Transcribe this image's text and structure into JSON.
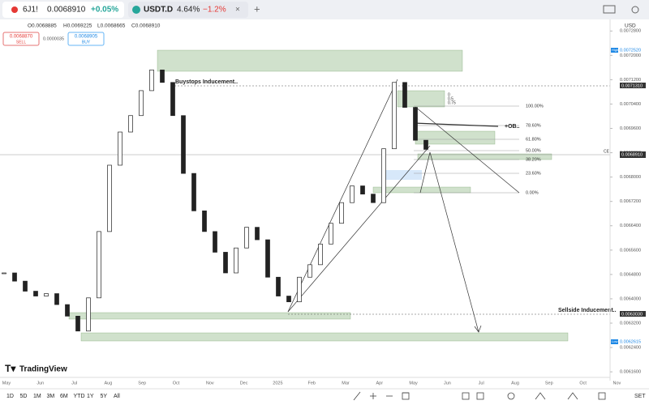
{
  "tabs": [
    {
      "symbol": "6J1!",
      "price": "0.0068910",
      "change": "+0.05%"
    },
    {
      "symbol": "USDT.D",
      "price": "4.64%",
      "change": "−1.2%"
    }
  ],
  "ohlc": {
    "open": "O0.0068885",
    "high": "H0.0069225",
    "low": "L0.0068665",
    "close": "C0.0068910"
  },
  "trade": {
    "sell_price": "0.0068870",
    "sell": "SELL",
    "spread": "0.0000035",
    "buy_price": "0.0068905",
    "buy": "BUY"
  },
  "currency": "USD",
  "chart_data": {
    "type": "candlestick",
    "values": [
      0.006485,
      0.006458,
      0.006425,
      0.006409,
      0.006417,
      0.006381,
      0.006343,
      0.006294,
      0.006403,
      0.006621,
      0.006839,
      0.006948,
      0.007002,
      0.007084,
      0.007152,
      0.007111,
      0.007002,
      0.006812,
      0.006689,
      0.006621,
      0.006553,
      0.006485,
      0.006567,
      0.006635,
      0.006594,
      0.006471,
      0.006409,
      0.00639,
      0.006471,
      0.006512,
      0.00658,
      0.006648,
      0.006716,
      0.006771,
      0.006744,
      0.006716,
      0.006893,
      0.007111,
      0.007029,
      0.006921,
      0.006891
    ],
    "ylim": [
      0.006131,
      0.007318
    ],
    "yticks": [
      {
        "value": 0.00728,
        "label": "0.0072800"
      },
      {
        "value": 0.0072,
        "label": "0.0072000"
      },
      {
        "value": 0.00712,
        "label": "0.0071200"
      },
      {
        "value": 0.00704,
        "label": "0.0070400"
      },
      {
        "value": 0.00696,
        "label": "0.0069600"
      },
      {
        "value": 0.00688,
        "label": "0.0068800"
      },
      {
        "value": 0.0068,
        "label": "0.0068000"
      },
      {
        "value": 0.00672,
        "label": "0.0067200"
      },
      {
        "value": 0.00664,
        "label": "0.0066400"
      },
      {
        "value": 0.00656,
        "label": "0.0065600"
      },
      {
        "value": 0.00648,
        "label": "0.0064800"
      },
      {
        "value": 0.0064,
        "label": "0.0064000"
      },
      {
        "value": 0.00632,
        "label": "0.0063200"
      },
      {
        "value": 0.00624,
        "label": "0.0062400"
      },
      {
        "value": 0.00616,
        "label": "0.0061600"
      }
    ]
  },
  "axis_tags": {
    "high_tag": "High",
    "high": "0.0072520",
    "buystops": "0.0071310",
    "last": "0.0068910",
    "sellside": "0.0063030",
    "low_tag": "Low",
    "low": "0.0062615"
  },
  "annotations": {
    "buystops": "Buystops Inducement..",
    "sellside": "Sellside Inducement..",
    "ob": "+OB..",
    "ce": "CE",
    "fib": [
      "100.00%",
      "78.60%",
      "61.80%",
      "50.00%",
      "38.20%",
      "23.60%",
      "0.00%"
    ],
    "mini_fib": [
      "0",
      "0.5",
      "0.75"
    ]
  },
  "months": [
    "May",
    "Jun",
    "Jul",
    "Aug",
    "Sep",
    "Oct",
    "Nov",
    "Dec",
    "2025",
    "Feb",
    "Mar",
    "Apr",
    "May",
    "Jun",
    "Jul",
    "Aug",
    "Sep",
    "Oct",
    "Nov"
  ],
  "timeframes": [
    "1D",
    "5D",
    "1M",
    "3M",
    "6M",
    "YTD",
    "1Y",
    "5Y",
    "All"
  ],
  "brand": "TradingView",
  "settings": "SET"
}
